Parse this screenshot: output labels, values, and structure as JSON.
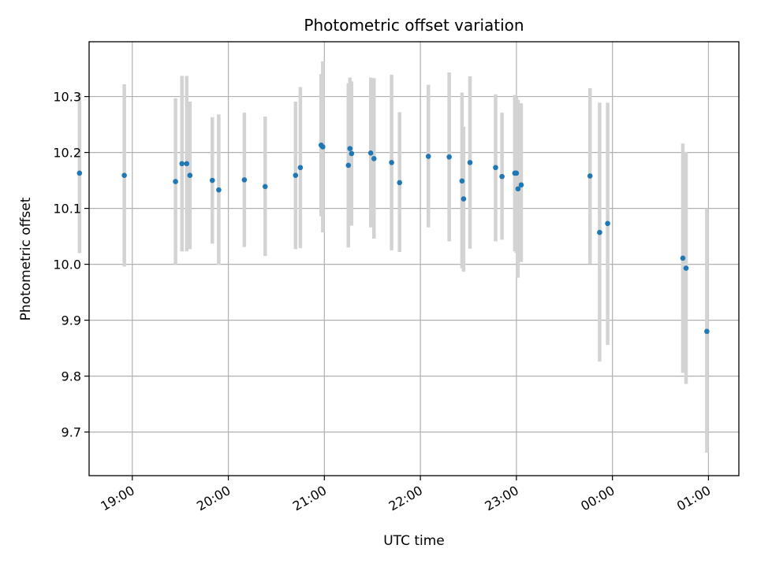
{
  "chart_data": {
    "type": "scatter",
    "title": "Photometric offset variation",
    "xlabel": "UTC time",
    "ylabel": "Photometric offset",
    "x_unit": "UTC time (day 2 = after midnight)",
    "xlim": [
      "18:33",
      "01:19"
    ],
    "ylim": [
      9.622,
      10.398
    ],
    "grid": true,
    "x_ticks": [
      "19:00",
      "20:00",
      "21:00",
      "22:00",
      "23:00",
      "00:00",
      "01:00"
    ],
    "y_ticks": [
      "9.7",
      "9.8",
      "9.9",
      "10.0",
      "10.1",
      "10.2",
      "10.3"
    ],
    "colors": {
      "point": "#1f77b4",
      "errorbar": "#d3d3d3",
      "grid": "#b0b0b0",
      "axis": "#000000"
    },
    "series": [
      {
        "points": [
          {
            "t": "18:27",
            "y": 10.163,
            "lo": 10.02,
            "hi": 10.306
          },
          {
            "t": "18:55",
            "y": 10.159,
            "lo": 9.996,
            "hi": 10.322
          },
          {
            "t": "19:27",
            "y": 10.148,
            "lo": 10.0,
            "hi": 10.297
          },
          {
            "t": "19:31",
            "y": 10.18,
            "lo": 10.023,
            "hi": 10.337
          },
          {
            "t": "19:34",
            "y": 10.18,
            "lo": 10.023,
            "hi": 10.337
          },
          {
            "t": "19:36",
            "y": 10.159,
            "lo": 10.027,
            "hi": 10.291
          },
          {
            "t": "19:50",
            "y": 10.15,
            "lo": 10.037,
            "hi": 10.263
          },
          {
            "t": "19:54",
            "y": 10.133,
            "lo": 9.999,
            "hi": 10.268
          },
          {
            "t": "20:10",
            "y": 10.151,
            "lo": 10.031,
            "hi": 10.271
          },
          {
            "t": "20:23",
            "y": 10.139,
            "lo": 10.015,
            "hi": 10.264
          },
          {
            "t": "20:42",
            "y": 10.159,
            "lo": 10.027,
            "hi": 10.291
          },
          {
            "t": "20:45",
            "y": 10.173,
            "lo": 10.029,
            "hi": 10.317
          },
          {
            "t": "20:58",
            "y": 10.213,
            "lo": 10.086,
            "hi": 10.34
          },
          {
            "t": "20:59",
            "y": 10.21,
            "lo": 10.057,
            "hi": 10.363
          },
          {
            "t": "21:15",
            "y": 10.177,
            "lo": 10.03,
            "hi": 10.324
          },
          {
            "t": "21:16",
            "y": 10.207,
            "lo": 10.081,
            "hi": 10.334
          },
          {
            "t": "21:17",
            "y": 10.198,
            "lo": 10.069,
            "hi": 10.327
          },
          {
            "t": "21:29",
            "y": 10.199,
            "lo": 10.066,
            "hi": 10.334
          },
          {
            "t": "21:31",
            "y": 10.189,
            "lo": 10.046,
            "hi": 10.333
          },
          {
            "t": "21:42",
            "y": 10.182,
            "lo": 10.025,
            "hi": 10.339
          },
          {
            "t": "21:47",
            "y": 10.146,
            "lo": 10.022,
            "hi": 10.272
          },
          {
            "t": "22:05",
            "y": 10.193,
            "lo": 10.066,
            "hi": 10.321
          },
          {
            "t": "22:18",
            "y": 10.192,
            "lo": 10.041,
            "hi": 10.343
          },
          {
            "t": "22:26",
            "y": 10.149,
            "lo": 9.993,
            "hi": 10.307
          },
          {
            "t": "22:27",
            "y": 10.117,
            "lo": 9.987,
            "hi": 10.246
          },
          {
            "t": "22:31",
            "y": 10.182,
            "lo": 10.028,
            "hi": 10.336
          },
          {
            "t": "22:47",
            "y": 10.173,
            "lo": 10.041,
            "hi": 10.304
          },
          {
            "t": "22:51",
            "y": 10.157,
            "lo": 10.044,
            "hi": 10.271
          },
          {
            "t": "22:59",
            "y": 10.163,
            "lo": 10.023,
            "hi": 10.303
          },
          {
            "t": "23:00",
            "y": 10.163,
            "lo": 10.02,
            "hi": 10.3
          },
          {
            "t": "23:01",
            "y": 10.135,
            "lo": 9.976,
            "hi": 10.294
          },
          {
            "t": "23:03",
            "y": 10.142,
            "lo": 10.004,
            "hi": 10.288
          },
          {
            "t": "23:46",
            "y": 10.158,
            "lo": 10.001,
            "hi": 10.315
          },
          {
            "t": "23:52",
            "y": 10.057,
            "lo": 9.826,
            "hi": 10.289
          },
          {
            "t": "23:57",
            "y": 10.073,
            "lo": 9.856,
            "hi": 10.289
          },
          {
            "t": "00:44",
            "y": 10.011,
            "lo": 9.806,
            "hi": 10.216
          },
          {
            "t": "00:46",
            "y": 9.993,
            "lo": 9.786,
            "hi": 10.201
          },
          {
            "t": "00:59",
            "y": 9.88,
            "lo": 9.663,
            "hi": 10.1
          }
        ]
      }
    ]
  }
}
